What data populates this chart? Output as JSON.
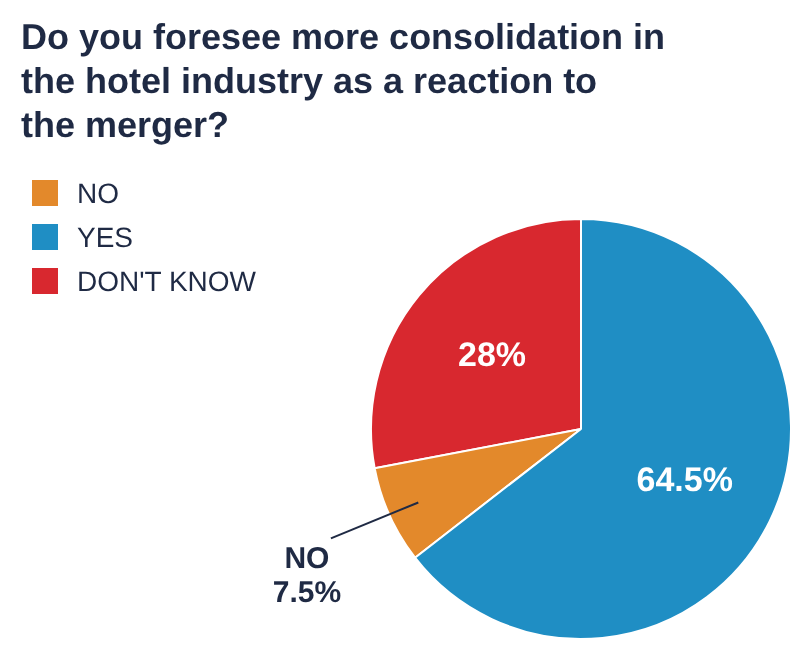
{
  "chart_data": {
    "type": "pie",
    "title": "Do you foresee more consolidation in the hotel industry as a reaction to the merger?",
    "categories": [
      "NO",
      "YES",
      "DON'T KNOW"
    ],
    "values": [
      7.5,
      64.5,
      28
    ],
    "colors": [
      "#e3892b",
      "#1f8ec4",
      "#d8282f"
    ],
    "value_labels": [
      "NO\n7.5%",
      "64.5%",
      "28%"
    ],
    "legend": "top left"
  }
}
